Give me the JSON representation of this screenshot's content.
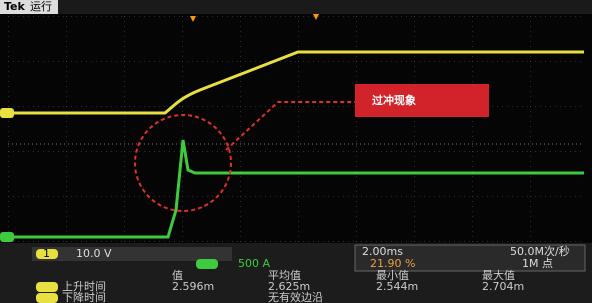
{
  "header": {
    "brand": "Tek",
    "status": "运行"
  },
  "annotation": {
    "label": "过冲现象"
  },
  "status_bar": {
    "ch1_number": "1",
    "ch1_scale": "10.0 V",
    "ch2_scale": "500 A",
    "timebase": "2.00ms",
    "trigger_pos": "21.90 %",
    "sample_rate": "50.0M次/秒",
    "record_length": "1M 点"
  },
  "measurements": {
    "headers": [
      "值",
      "平均值",
      "最小值",
      "最大值"
    ],
    "rows": [
      [
        "上升时间",
        "2.596m",
        "2.625m",
        "2.544m",
        "2.704m"
      ],
      [
        "下降时间",
        "无有效边沿"
      ]
    ]
  }
}
